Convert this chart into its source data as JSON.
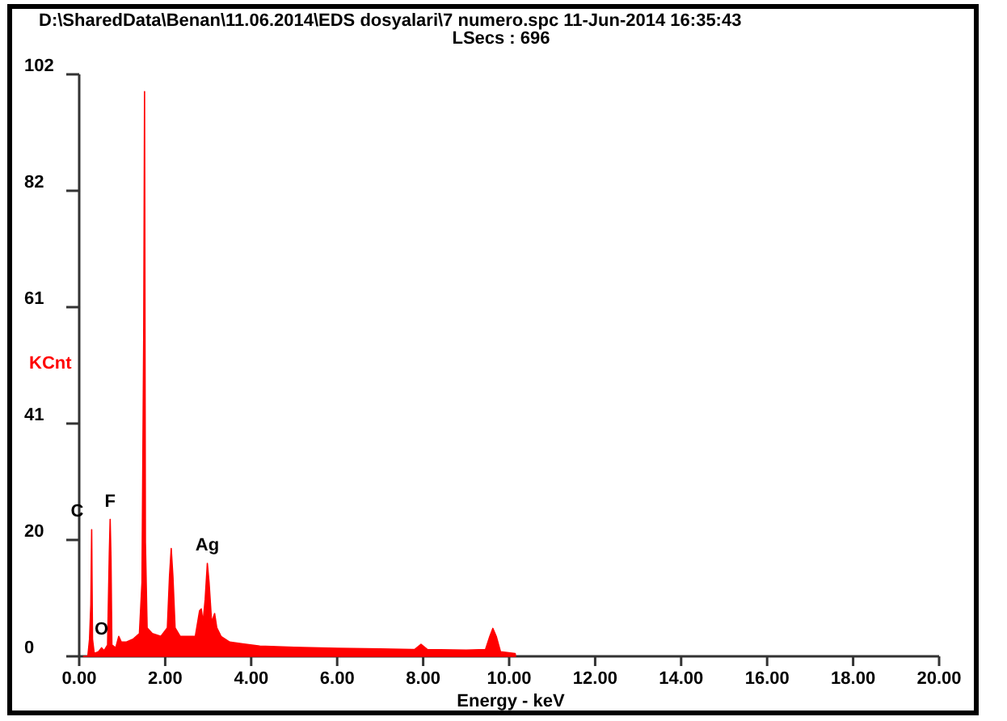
{
  "chart_data": {
    "type": "area",
    "title": "D:\\SharedData\\Benan\\11.06.2014\\EDS dosyalari\\7 numero.spc  11-Jun-2014 16:35:43",
    "subtitle": "LSecs :  696",
    "xlabel": "Energy - keV",
    "ylabel": "KCnt",
    "xlim": [
      0,
      20
    ],
    "xticks": [
      {
        "value": 0,
        "label": "0.00"
      },
      {
        "value": 2,
        "label": "2.00"
      },
      {
        "value": 4,
        "label": "4.00"
      },
      {
        "value": 6,
        "label": "6.00"
      },
      {
        "value": 8,
        "label": "8.00"
      },
      {
        "value": 10,
        "label": "10.00"
      },
      {
        "value": 12,
        "label": "12.00"
      },
      {
        "value": 14,
        "label": "14.00"
      },
      {
        "value": 16,
        "label": "16.00"
      },
      {
        "value": 18,
        "label": "18.00"
      },
      {
        "value": 20,
        "label": "20.00"
      }
    ],
    "ylim": [
      0,
      102
    ],
    "yticks": [
      0,
      {
        "value": 20.4,
        "label": "20"
      },
      {
        "value": 40.8,
        "label": "41"
      },
      {
        "value": 61.2,
        "label": "61"
      },
      {
        "value": 81.6,
        "label": "82"
      },
      102
    ],
    "x": [
      0.1,
      0.2,
      0.24,
      0.27,
      0.29,
      0.31,
      0.35,
      0.45,
      0.52,
      0.58,
      0.66,
      0.7,
      0.72,
      0.74,
      0.76,
      0.85,
      0.92,
      0.98,
      1.1,
      1.25,
      1.4,
      1.46,
      1.5,
      1.52,
      1.54,
      1.58,
      1.7,
      1.9,
      2.05,
      2.1,
      2.14,
      2.18,
      2.23,
      2.35,
      2.5,
      2.7,
      2.8,
      2.84,
      2.88,
      2.93,
      2.98,
      3.02,
      3.08,
      3.15,
      3.2,
      3.3,
      3.5,
      3.8,
      4.2,
      5,
      6,
      7,
      7.8,
      7.95,
      8.1,
      9,
      9.45,
      9.55,
      9.62,
      9.7,
      9.8,
      10.14,
      10.15
    ],
    "series": [
      {
        "color": "#ff0000",
        "values": [
          0,
          0,
          3,
          9,
          22.2,
          3,
          0.5,
          0.8,
          1.5,
          1,
          2,
          18,
          24,
          17,
          2,
          1.5,
          3.5,
          2.5,
          2.5,
          3,
          4,
          13,
          56,
          99,
          20,
          5,
          4,
          3.5,
          5,
          14,
          18.9,
          14,
          5,
          3.5,
          3.5,
          3.5,
          8,
          8.3,
          6,
          10,
          16.3,
          13,
          6,
          7.5,
          5,
          3.5,
          2.5,
          2.2,
          1.8,
          1.6,
          1.4,
          1.3,
          1.2,
          2.1,
          1.2,
          1.1,
          1.2,
          3.5,
          4.9,
          3.5,
          0.8,
          0.5,
          0
        ]
      }
    ],
    "annotations": [
      {
        "text": "C",
        "x": 0.29,
        "y": 22.2
      },
      {
        "text": "F",
        "x": 0.72,
        "y": 24
      },
      {
        "text": "O",
        "x": 0.52,
        "y": 1.5
      },
      {
        "text": "Ag",
        "x": 2.98,
        "y": 16.3
      }
    ],
    "grid": false,
    "marker": "none"
  }
}
